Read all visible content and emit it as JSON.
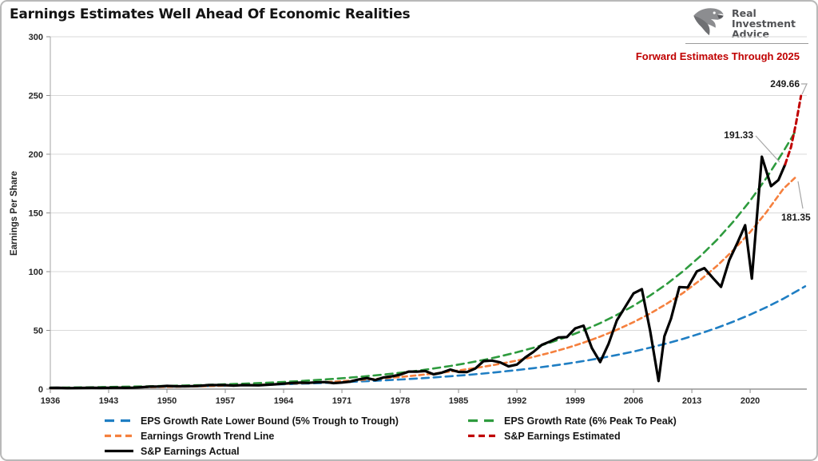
{
  "title": "Earnings Estimates Well Ahead Of Economic Realities",
  "brand": {
    "icon": "eagle",
    "name_lines": [
      "Real",
      "Investment",
      "Advice"
    ]
  },
  "chart_data": {
    "type": "line",
    "title": "Earnings Estimates Well Ahead Of Economic Realities",
    "xlabel": "",
    "ylabel": "Earnings Per Share",
    "annotation_note": "Forward Estimates Through 2025",
    "annotation_note_color": "#C00000",
    "xlim": [
      1936,
      2026.8
    ],
    "ylim": [
      0,
      300
    ],
    "x_ticks": [
      1936,
      1943,
      1950,
      1957,
      1964,
      1971,
      1978,
      1985,
      1992,
      1999,
      2006,
      2013,
      2020
    ],
    "y_ticks": [
      0,
      50,
      100,
      150,
      200,
      250,
      300
    ],
    "grid": "horizontal",
    "legend_position": "bottom",
    "series": [
      {
        "name": "EPS Growth Rate Lower Bound (5% Trough to Trough)",
        "color": "#1F7EC3",
        "style": "dashed",
        "x": [
          1936,
          1938,
          1940,
          1942,
          1944,
          1946,
          1948,
          1950,
          1952,
          1954,
          1956,
          1958,
          1960,
          1962,
          1964,
          1966,
          1968,
          1970,
          1972,
          1974,
          1976,
          1978,
          1980,
          1982,
          1984,
          1986,
          1988,
          1990,
          1992,
          1994,
          1996,
          1998,
          2000,
          2002,
          2004,
          2006,
          2008,
          2010,
          2012,
          2014,
          2016,
          2018,
          2020,
          2022,
          2024,
          2026.6
        ],
        "y": [
          1.05,
          1.16,
          1.28,
          1.41,
          1.55,
          1.71,
          1.89,
          2.08,
          2.29,
          2.53,
          2.79,
          3.07,
          3.39,
          3.74,
          4.12,
          4.54,
          5.01,
          5.52,
          6.09,
          6.71,
          7.4,
          8.16,
          9.0,
          9.92,
          10.94,
          12.06,
          13.29,
          14.66,
          16.16,
          17.82,
          19.64,
          21.66,
          23.88,
          26.33,
          29.03,
          32.0,
          35.28,
          38.9,
          42.89,
          47.29,
          52.13,
          57.48,
          63.37,
          69.87,
          77.03,
          87.5
        ]
      },
      {
        "name": "Earnings Growth Trend Line",
        "color": "#F5803E",
        "style": "dashed",
        "x": [
          1936,
          1938,
          1940,
          1942,
          1944,
          1946,
          1948,
          1950,
          1952,
          1954,
          1956,
          1958,
          1960,
          1962,
          1964,
          1966,
          1968,
          1970,
          1972,
          1974,
          1976,
          1978,
          1980,
          1982,
          1984,
          1986,
          1988,
          1990,
          1992,
          1994,
          1996,
          1998,
          2000,
          2002,
          2004,
          2006,
          2008,
          2010,
          2012,
          2014,
          2016,
          2018,
          2020,
          2022,
          2024,
          2025.6
        ],
        "y": [
          0.8,
          0.9,
          1.02,
          1.15,
          1.3,
          1.47,
          1.66,
          1.88,
          2.12,
          2.4,
          2.71,
          3.06,
          3.45,
          3.9,
          4.41,
          4.98,
          5.62,
          6.35,
          7.18,
          8.11,
          9.16,
          10.34,
          11.69,
          13.2,
          14.91,
          16.85,
          19.03,
          21.5,
          24.28,
          27.43,
          30.99,
          35.0,
          39.54,
          44.66,
          50.45,
          56.99,
          64.38,
          72.72,
          82.14,
          92.79,
          104.82,
          118.4,
          133.74,
          151.08,
          170.66,
          181.35
        ]
      },
      {
        "name": "S&P Earnings Actual",
        "color": "#000000",
        "style": "solid",
        "x": [
          1936,
          1937,
          1938,
          1939,
          1940,
          1941,
          1942,
          1943,
          1944,
          1945,
          1946,
          1947,
          1948,
          1949,
          1950,
          1951,
          1952,
          1953,
          1954,
          1955,
          1956,
          1957,
          1958,
          1959,
          1960,
          1961,
          1962,
          1963,
          1964,
          1965,
          1966,
          1967,
          1968,
          1969,
          1970,
          1971,
          1972,
          1973,
          1974,
          1975,
          1976,
          1977,
          1978,
          1979,
          1980,
          1981,
          1982,
          1983,
          1984,
          1985,
          1986,
          1987,
          1988,
          1989,
          1990,
          1991,
          1992,
          1993,
          1994,
          1995,
          1996,
          1997,
          1998,
          1999,
          2000,
          2001,
          2002,
          2003,
          2004,
          2005,
          2006,
          2007,
          2008,
          2009,
          2009.7,
          2010.5,
          2011.5,
          2012.5,
          2013.6,
          2014.5,
          2015.6,
          2016.5,
          2017.5,
          2018.5,
          2019.4,
          2020.2,
          2021.4,
          2022.5,
          2023.4,
          2024.2
        ],
        "y": [
          1.0,
          1.1,
          0.8,
          0.9,
          1.0,
          1.1,
          1.0,
          1.1,
          1.2,
          1.1,
          1.2,
          1.6,
          2.1,
          2.2,
          2.7,
          2.4,
          2.4,
          2.5,
          2.8,
          3.4,
          3.4,
          3.4,
          2.9,
          3.4,
          3.3,
          3.2,
          3.7,
          4.1,
          4.6,
          5.2,
          5.5,
          5.3,
          5.8,
          6.0,
          5.1,
          5.6,
          6.4,
          8.2,
          9.4,
          7.7,
          9.9,
          10.9,
          12.3,
          14.9,
          14.8,
          15.4,
          12.6,
          14.0,
          16.6,
          14.6,
          14.5,
          17.5,
          23.8,
          24.3,
          22.7,
          19.3,
          20.9,
          26.9,
          31.8,
          37.7,
          40.6,
          44.0,
          44.3,
          51.7,
          54.0,
          35.0,
          23.0,
          38.5,
          58.5,
          69.9,
          81.5,
          85.1,
          49.5,
          6.9,
          45.0,
          60.0,
          86.9,
          86.5,
          100.2,
          103.0,
          94.0,
          87.0,
          109.9,
          125.0,
          139.5,
          94.1,
          197.9,
          172.8,
          178.0,
          191.33
        ]
      },
      {
        "name": "EPS Growth Rate (6% Peak To Peak)",
        "color": "#2E9B3E",
        "style": "dashed",
        "x": [
          1936,
          1938,
          1940,
          1942,
          1944,
          1946,
          1948,
          1950,
          1952,
          1954,
          1956,
          1958,
          1960,
          1962,
          1964,
          1966,
          1968,
          1970,
          1972,
          1974,
          1976,
          1978,
          1980,
          1982,
          1984,
          1986,
          1988,
          1990,
          1992,
          1994,
          1996,
          1998,
          2000,
          2002,
          2004,
          2006,
          2008,
          2010,
          2012,
          2014,
          2016,
          2018,
          2020,
          2022,
          2024,
          2025.6
        ],
        "y": [
          1.2,
          1.35,
          1.52,
          1.7,
          1.91,
          2.15,
          2.42,
          2.72,
          3.05,
          3.43,
          3.85,
          4.33,
          4.86,
          5.46,
          6.14,
          6.9,
          7.75,
          8.71,
          9.78,
          10.99,
          12.35,
          13.88,
          15.59,
          17.52,
          19.68,
          22.12,
          24.85,
          27.92,
          31.37,
          35.25,
          39.61,
          44.5,
          50.0,
          56.18,
          63.13,
          70.93,
          79.7,
          89.55,
          100.62,
          113.06,
          127.03,
          142.74,
          160.38,
          180.2,
          202.48,
          221.5
        ]
      },
      {
        "name": "S&P Earnings Estimated",
        "color": "#C00000",
        "style": "dashed",
        "x": [
          2024.2,
          2024.9,
          2025.5,
          2026.1
        ],
        "y": [
          191.33,
          206,
          226,
          249.66
        ]
      }
    ],
    "point_labels": [
      {
        "text": "249.66",
        "value": 249.66,
        "series": "S&P Earnings Estimated"
      },
      {
        "text": "191.33",
        "value": 191.33,
        "series": "S&P Earnings Actual"
      },
      {
        "text": "181.35",
        "value": 181.35,
        "series": "Earnings Growth Trend Line"
      }
    ]
  }
}
